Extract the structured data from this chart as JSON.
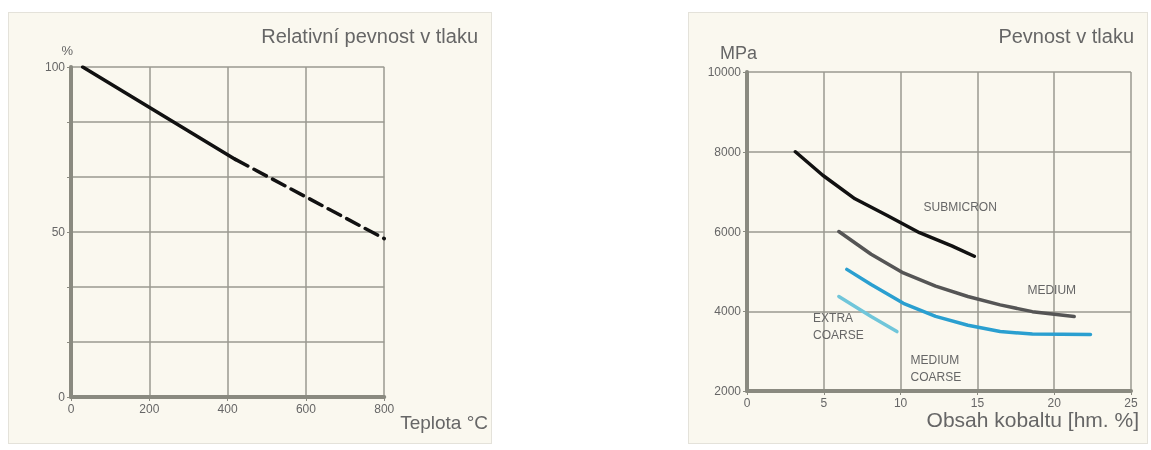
{
  "chart_data": [
    {
      "type": "line",
      "title": "Relativní pevnost v tlaku",
      "xlabel": "Teplota °C",
      "ylabel": "%",
      "xlim": [
        0,
        800
      ],
      "xticks": [
        0,
        200,
        400,
        600,
        800
      ],
      "ylim": [
        0,
        100
      ],
      "yticks": [
        0,
        {
          "value": 16.7,
          "label": null
        },
        {
          "value": 33.3,
          "label": null
        },
        50,
        {
          "value": 66.7,
          "label": null
        },
        {
          "value": 83.3,
          "label": null
        },
        100
      ],
      "grid": true,
      "marker": "none",
      "series": [
        {
          "color": "#111111",
          "line_style": "solid",
          "x": [
            30,
            420
          ],
          "values": [
            100,
            72
          ]
        },
        {
          "color": "#111111",
          "line_style": "dashed",
          "x": [
            420,
            800
          ],
          "values": [
            72,
            48
          ]
        }
      ]
    },
    {
      "type": "line",
      "title": "Pevnost v tlaku",
      "xlabel": "Obsah kobaltu [hm. %]",
      "ylabel": "MPa",
      "xlim": [
        0,
        25
      ],
      "xticks": [
        0,
        5,
        10,
        15,
        20,
        25
      ],
      "ylim": [
        2000,
        10000
      ],
      "yticks": [
        2000,
        4000,
        6000,
        8000,
        10000
      ],
      "grid": true,
      "marker": "none",
      "series": [
        {
          "name": "SUBMICRON",
          "color": "#111111",
          "x": [
            3.15,
            4.93,
            7.03,
            9.13,
            11.23,
            13.33,
            14.8
          ],
          "values": [
            8000,
            7410,
            6820,
            6400,
            5970,
            5640,
            5380
          ]
        },
        {
          "name": "MEDIUM",
          "color": "#555555",
          "x": [
            5.98,
            8.08,
            10.18,
            12.28,
            14.38,
            16.48,
            18.58,
            21.3
          ],
          "values": [
            6000,
            5430,
            4960,
            4630,
            4370,
            4160,
            3990,
            3870
          ]
        },
        {
          "name": "MEDIUM COARSE",
          "color": "#2a9fd0",
          "x": [
            6.5,
            8.08,
            10.18,
            12.28,
            14.38,
            16.48,
            18.58,
            22.36
          ],
          "values": [
            5050,
            4670,
            4200,
            3870,
            3650,
            3490,
            3430,
            3420
          ]
        },
        {
          "name": "EXTRA COARSE",
          "color": "#70c6da",
          "x": [
            5.98,
            8.08,
            9.76
          ],
          "values": [
            4370,
            3870,
            3490
          ]
        }
      ]
    }
  ]
}
